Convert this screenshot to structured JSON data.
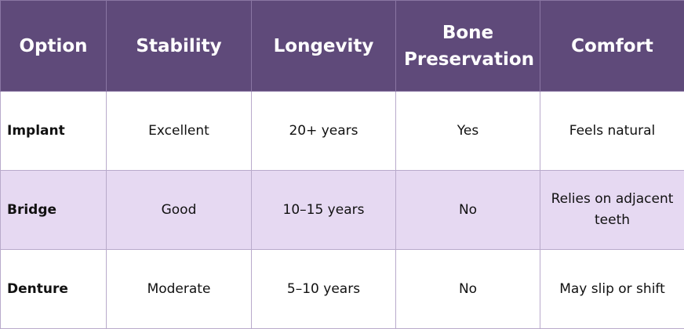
{
  "table": {
    "headers": [
      "Option",
      "Stability",
      "Longevity",
      "Bone Preservation",
      "Comfort"
    ],
    "rows": [
      [
        "Implant",
        "Excellent",
        "20+ years",
        "Yes",
        "Feels natural"
      ],
      [
        "Bridge",
        "Good",
        "10–15 years",
        "No",
        "Relies on adjacent teeth"
      ],
      [
        "Denture",
        "Moderate",
        "5–10 years",
        "No",
        "May slip or shift"
      ]
    ]
  },
  "colors": {
    "header_bg": "#5f4a7a",
    "header_text": "#ffffff",
    "stripe_bg": "#e6d9f2",
    "border": "#b9aacb"
  }
}
